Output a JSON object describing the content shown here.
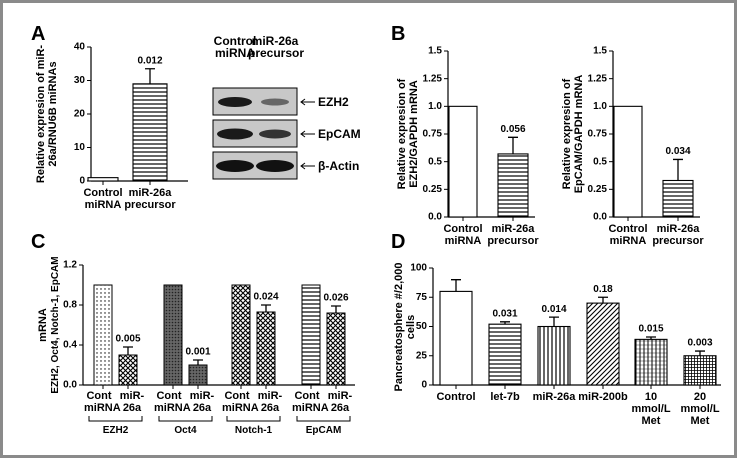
{
  "panel_labels": [
    "A",
    "B",
    "C",
    "D"
  ],
  "blot": {
    "lanes": [
      "Control miRNA",
      "miR-26a precursor"
    ],
    "bands": [
      "EZH2",
      "EpCAM",
      "β-Actin"
    ]
  },
  "chart_data": [
    {
      "type": "bar",
      "ylabel": "Relative expresion of miR-26a/RNU6B miRNAs",
      "categories": [
        "Control miRNA",
        "miR-26a precursor"
      ],
      "values": [
        1,
        29
      ],
      "errors": [
        null,
        4.5
      ],
      "annotations": [
        null,
        "0.012"
      ],
      "ylim": [
        0,
        40
      ],
      "yticks": [
        0,
        10,
        20,
        30,
        40
      ],
      "color": "#000000"
    },
    {
      "type": "bar",
      "ylabel": "Relative expresion of EZH2/GAPDH mRNA",
      "categories": [
        "Control miRNA",
        "miR-26a precursor"
      ],
      "values": [
        1,
        0.57
      ],
      "errors": [
        null,
        0.15
      ],
      "annotations": [
        null,
        "0.056"
      ],
      "ylim": [
        0,
        1.5
      ],
      "yticks": [
        {
          "value": 0,
          "label": "0.0"
        },
        0.25,
        0.5,
        0.75,
        {
          "value": 1,
          "label": "1.0"
        },
        1.25,
        1.5
      ],
      "color": "#000000"
    },
    {
      "type": "bar",
      "ylabel": "Relative expresion of EpCAM/GAPDH mRNA",
      "categories": [
        "Control miRNA",
        "miR-26a precursor"
      ],
      "values": [
        1,
        0.33
      ],
      "errors": [
        null,
        0.19
      ],
      "annotations": [
        null,
        "0.034"
      ],
      "ylim": [
        0,
        1.5
      ],
      "yticks": [
        {
          "value": 0,
          "label": "0.0"
        },
        0.25,
        0.5,
        0.75,
        {
          "value": 1,
          "label": "1.0"
        },
        1.25,
        1.5
      ],
      "color": "#000000"
    },
    {
      "type": "grouped_bar",
      "ylabel": "mRNA",
      "ylabel_detail": "EZH2, Oct4, Notch-1, EpCAM",
      "categories": [
        "EZH2",
        "Oct4",
        "Notch-1",
        "EpCAM"
      ],
      "series": [
        {
          "name": "Cont miRNA",
          "values": [
            1,
            1,
            1,
            1
          ]
        },
        {
          "name": "miR-26a",
          "values": [
            0.3,
            0.2,
            0.73,
            0.72
          ],
          "errors": [
            0.08,
            0.05,
            0.07,
            0.07
          ],
          "annotations": [
            "0.005",
            "0.001",
            "0.024",
            "0.026"
          ]
        }
      ],
      "ylim": [
        0,
        1.2
      ],
      "yticks": [
        {
          "value": 0,
          "label": "0.0"
        },
        0.4,
        0.8,
        1.2
      ],
      "color": "#000000"
    },
    {
      "type": "bar",
      "ylabel": "Pancreatosphere #/2,000 cells",
      "categories": [
        "Control",
        "let-7b",
        "miR-26a",
        "miR-200b",
        "10 mmol/L Met",
        "20 mmol/L Met"
      ],
      "values": [
        80,
        52,
        50,
        70,
        39,
        25
      ],
      "errors": [
        10,
        2,
        8,
        5,
        2,
        4
      ],
      "annotations": [
        null,
        "0.031",
        "0.014",
        "0.18",
        "0.015",
        "0.003"
      ],
      "ylim": [
        0,
        100
      ],
      "yticks": [
        0,
        25,
        50,
        75,
        100
      ],
      "color": "#000000"
    }
  ]
}
